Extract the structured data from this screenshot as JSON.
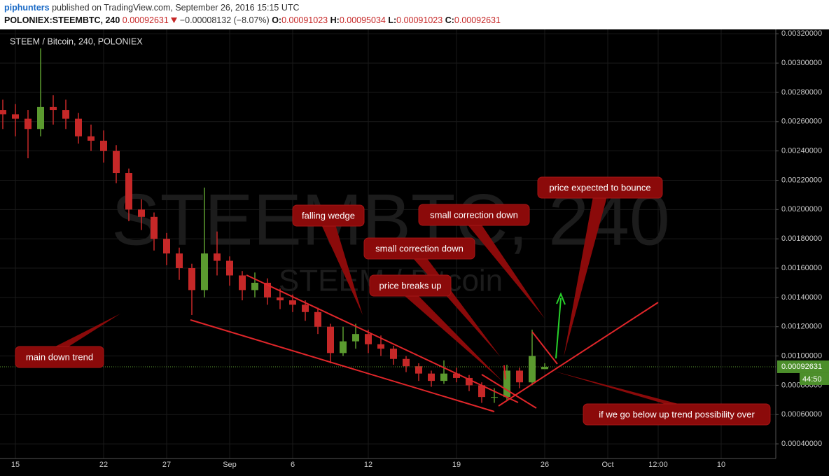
{
  "header": {
    "publisher": "piphunters",
    "published": "published on TradingView.com, September 26, 2016 15:15 UTC"
  },
  "chart_data": {
    "type": "candlestick",
    "symbol": "POLONIEX:STEEMBTC, 240",
    "last": 0.00092631,
    "change": "−0.00008132 (−8.07%)",
    "ohlc_labels": [
      "O:",
      "H:",
      "L:",
      "C:"
    ],
    "ohlc_values": [
      0.00091023,
      0.00095034,
      0.00091023,
      0.00092631
    ],
    "legend": "STEEM / Bitcoin, 240, POLONIEX",
    "watermark": "STEEMBTC, 240",
    "watermark_sub": "STEEM / Bitcoin",
    "countdown": "44:50",
    "up_color": "#5b9a2f",
    "down_color": "#c62828",
    "grid": true,
    "categories": [
      null,
      "15",
      null,
      null,
      null,
      null,
      null,
      null,
      "22",
      null,
      null,
      null,
      null,
      "27",
      null,
      null,
      null,
      null,
      "Sep",
      null,
      null,
      null,
      null,
      "6",
      null,
      null,
      null,
      null,
      null,
      "12",
      null,
      null,
      null,
      null,
      null,
      null,
      "19",
      null,
      null,
      null,
      null,
      null,
      null,
      "26",
      null,
      null,
      null,
      null,
      "Oct",
      null,
      null,
      null,
      "12:00",
      null,
      null,
      null,
      null,
      "10",
      null,
      null,
      null,
      null
    ],
    "open": [
      0.00268,
      0.00265,
      0.00262,
      0.00255,
      0.0027,
      0.00268,
      0.00262,
      0.0025,
      0.00247,
      0.0024,
      0.00225,
      0.002,
      0.00195,
      0.0018,
      0.0017,
      0.0016,
      0.00145,
      0.0017,
      0.00165,
      0.00155,
      0.00145,
      0.0015,
      0.0014,
      0.00138,
      0.00135,
      0.0013,
      0.0012,
      0.00102,
      0.0011,
      0.00115,
      0.00108,
      0.00105,
      0.00098,
      0.00093,
      0.00088,
      0.00083,
      0.00088,
      0.00085,
      0.0008,
      0.00072,
      0.00072,
      0.0009,
      0.00082,
      0.00091023,
      null,
      null,
      null,
      null,
      null,
      null,
      null,
      null,
      null,
      null,
      null,
      null,
      null,
      null,
      null,
      null,
      null,
      null
    ],
    "high": [
      0.00275,
      0.00272,
      0.00268,
      0.0031,
      0.00278,
      0.00275,
      0.00266,
      0.00258,
      0.00254,
      0.00244,
      0.00228,
      0.00207,
      0.00198,
      0.00184,
      0.00174,
      0.00163,
      0.00215,
      0.00185,
      0.00168,
      0.00158,
      0.00157,
      0.00153,
      0.00146,
      0.00142,
      0.00138,
      0.00133,
      0.00122,
      0.0012,
      0.00122,
      0.00118,
      0.00114,
      0.00107,
      0.001,
      0.00095,
      0.0009,
      0.00097,
      0.00092,
      0.00087,
      0.00082,
      0.00078,
      0.00094,
      0.00092,
      0.00118,
      0.00095034,
      null,
      null,
      null,
      null,
      null,
      null,
      null,
      null,
      null,
      null,
      null,
      null,
      null,
      null,
      null,
      null,
      null,
      null
    ],
    "low": [
      0.00255,
      0.0025,
      0.00235,
      0.0025,
      0.00258,
      0.00255,
      0.00245,
      0.0024,
      0.00232,
      0.00218,
      0.00192,
      0.00186,
      0.00172,
      0.00162,
      0.00152,
      0.00128,
      0.0014,
      0.00155,
      0.00148,
      0.00138,
      0.0014,
      0.00135,
      0.00132,
      0.0013,
      0.00124,
      0.00115,
      0.00095,
      0.001,
      0.00105,
      0.00102,
      0.001,
      0.00094,
      0.00089,
      0.00083,
      0.00079,
      0.00081,
      0.00082,
      0.00076,
      0.00068,
      0.00068,
      0.0007,
      0.00078,
      0.0008,
      0.00091023,
      null,
      null,
      null,
      null,
      null,
      null,
      null,
      null,
      null,
      null,
      null,
      null,
      null,
      null,
      null,
      null,
      null,
      null
    ],
    "close": [
      0.00265,
      0.00262,
      0.00255,
      0.0027,
      0.00268,
      0.00262,
      0.0025,
      0.00247,
      0.0024,
      0.00225,
      0.002,
      0.00195,
      0.0018,
      0.0017,
      0.0016,
      0.00145,
      0.0017,
      0.00165,
      0.00155,
      0.00145,
      0.0015,
      0.0014,
      0.00138,
      0.00135,
      0.0013,
      0.0012,
      0.00102,
      0.0011,
      0.00115,
      0.00108,
      0.00105,
      0.00098,
      0.00093,
      0.00088,
      0.00083,
      0.00088,
      0.00085,
      0.0008,
      0.00072,
      0.00072,
      0.0009,
      0.00082,
      0.001,
      0.00092631,
      null,
      null,
      null,
      null,
      null,
      null,
      null,
      null,
      null,
      null,
      null,
      null,
      null,
      null,
      null,
      null,
      null,
      null
    ],
    "ylim": [
      0.0003,
      0.00323
    ],
    "yticks": [
      {
        "value": 0.0004,
        "label": "0.00040000"
      },
      {
        "value": 0.0006,
        "label": "0.00060000"
      },
      {
        "value": 0.0008,
        "label": "0.00080000"
      },
      {
        "value": 0.001,
        "label": "0.00100000"
      },
      {
        "value": 0.0012,
        "label": "0.00120000"
      },
      {
        "value": 0.0014,
        "label": "0.00140000"
      },
      {
        "value": 0.0016,
        "label": "0.00160000"
      },
      {
        "value": 0.0018,
        "label": "0.00180000"
      },
      {
        "value": 0.002,
        "label": "0.00200000"
      },
      {
        "value": 0.0022,
        "label": "0.00220000"
      },
      {
        "value": 0.0024,
        "label": "0.00240000"
      },
      {
        "value": 0.0026,
        "label": "0.00260000"
      },
      {
        "value": 0.0028,
        "label": "0.00280000"
      },
      {
        "value": 0.003,
        "label": "0.00300000"
      },
      {
        "value": 0.0032,
        "label": "0.00320000"
      }
    ],
    "annotations": [
      {
        "text": "main down trend"
      },
      {
        "text": "falling wedge"
      },
      {
        "text": "small correction down"
      },
      {
        "text": "price breaks up"
      },
      {
        "text": "small correction down"
      },
      {
        "text": "price expected to bounce"
      },
      {
        "text": "if we go below up trend possibility over"
      }
    ]
  }
}
